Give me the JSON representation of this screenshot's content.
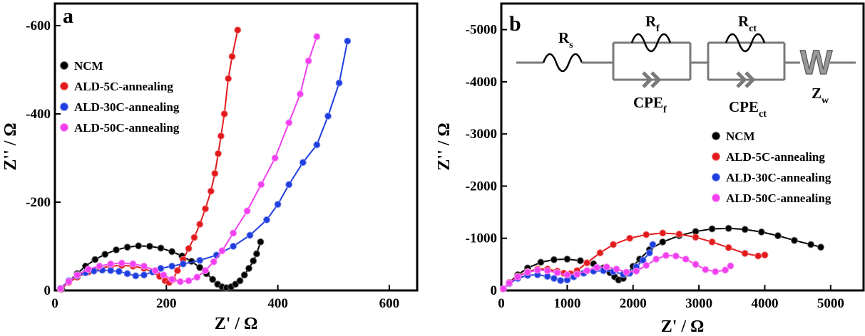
{
  "chart_data": [
    {
      "type": "scatter",
      "panel_label": "a",
      "xlabel": "Z' / Ω",
      "ylabel": "Z'' / Ω",
      "xlim": [
        0,
        650
      ],
      "ylim": [
        0,
        -650
      ],
      "xticks": [
        0,
        200,
        400,
        600
      ],
      "yticks": [
        0,
        -200,
        -400,
        -600
      ],
      "xtick_labels": [
        "0",
        "200",
        "400",
        "600"
      ],
      "ytick_labels": [
        "0",
        "-200",
        "-400",
        "-600"
      ],
      "legend_position": "left-middle",
      "series": [
        {
          "name": "NCM",
          "color": "#000000",
          "x": [
            12,
            25,
            40,
            55,
            72,
            90,
            110,
            130,
            150,
            170,
            190,
            210,
            228,
            245,
            260,
            272,
            283,
            292,
            300,
            308,
            316,
            324,
            332,
            340,
            348,
            356,
            362,
            369
          ],
          "y": [
            -3,
            -20,
            -38,
            -55,
            -70,
            -82,
            -92,
            -98,
            -101,
            -100,
            -96,
            -88,
            -78,
            -66,
            -52,
            -38,
            -25,
            -14,
            -8,
            -6,
            -8,
            -14,
            -22,
            -35,
            -50,
            -67,
            -83,
            -110
          ]
        },
        {
          "name": "ALD-5C-annealing",
          "color": "#e3191c",
          "x": [
            10,
            25,
            40,
            60,
            80,
            100,
            120,
            140,
            160,
            175,
            188,
            198,
            205,
            212,
            220,
            230,
            240,
            250,
            260,
            270,
            280,
            287,
            293,
            298,
            304,
            311,
            318,
            328
          ],
          "y": [
            -3,
            -18,
            -30,
            -42,
            -50,
            -55,
            -57,
            -55,
            -50,
            -42,
            -32,
            -22,
            -18,
            -25,
            -45,
            -70,
            -95,
            -120,
            -150,
            -185,
            -225,
            -265,
            -310,
            -350,
            -400,
            -480,
            -530,
            -590
          ]
        },
        {
          "name": "ALD-30C-annealing",
          "color": "#1f3ee0",
          "x": [
            10,
            25,
            40,
            55,
            70,
            85,
            100,
            115,
            130,
            145,
            160,
            175,
            190,
            210,
            230,
            260,
            290,
            320,
            350,
            380,
            400,
            420,
            445,
            470,
            490,
            510,
            525
          ],
          "y": [
            -5,
            -22,
            -33,
            -40,
            -44,
            -46,
            -45,
            -43,
            -38,
            -33,
            -35,
            -42,
            -50,
            -55,
            -60,
            -68,
            -80,
            -100,
            -125,
            -160,
            -195,
            -240,
            -290,
            -330,
            -395,
            -470,
            -565
          ]
        },
        {
          "name": "ALD-50C-annealing",
          "color": "#f23ff0",
          "x": [
            10,
            25,
            40,
            60,
            80,
            100,
            120,
            140,
            160,
            180,
            195,
            210,
            225,
            240,
            255,
            270,
            285,
            300,
            320,
            345,
            370,
            395,
            420,
            440,
            455,
            470
          ],
          "y": [
            -4,
            -20,
            -35,
            -48,
            -55,
            -60,
            -62,
            -60,
            -55,
            -45,
            -35,
            -25,
            -20,
            -22,
            -30,
            -45,
            -65,
            -90,
            -130,
            -180,
            -240,
            -300,
            -380,
            -445,
            -520,
            -575
          ]
        }
      ]
    },
    {
      "type": "scatter",
      "panel_label": "b",
      "xlabel": "Z' / Ω",
      "ylabel": "Z'' / Ω",
      "xlim": [
        0,
        5500
      ],
      "ylim": [
        0,
        -5500
      ],
      "xticks": [
        0,
        1000,
        2000,
        3000,
        4000,
        5000
      ],
      "yticks": [
        0,
        -1000,
        -2000,
        -3000,
        -4000,
        -5000
      ],
      "xtick_labels": [
        "0",
        "1000",
        "2000",
        "3000",
        "4000",
        "5000"
      ],
      "ytick_labels": [
        "0",
        "-1000",
        "-2000",
        "-3000",
        "-4000",
        "-5000"
      ],
      "legend_position": "center-right",
      "circuit": {
        "labels": [
          "R",
          "s",
          "R",
          "f",
          "R",
          "ct",
          "CPE",
          "f",
          "CPE",
          "ct",
          "Z",
          "w",
          "W"
        ]
      },
      "series": [
        {
          "name": "NCM",
          "color": "#000000",
          "x": [
            30,
            120,
            250,
            400,
            600,
            800,
            1000,
            1200,
            1400,
            1550,
            1650,
            1720,
            1780,
            1850,
            1920,
            2000,
            2100,
            2250,
            2450,
            2700,
            2950,
            3200,
            3450,
            3700,
            3950,
            4200,
            4450,
            4700,
            4850
          ],
          "y": [
            -30,
            -150,
            -300,
            -430,
            -540,
            -590,
            -600,
            -570,
            -510,
            -430,
            -340,
            -260,
            -200,
            -230,
            -330,
            -460,
            -600,
            -780,
            -930,
            -1050,
            -1130,
            -1180,
            -1190,
            -1170,
            -1120,
            -1050,
            -960,
            -880,
            -830
          ]
        },
        {
          "name": "ALD-5C-annealing",
          "color": "#e3191c",
          "x": [
            30,
            120,
            250,
            400,
            550,
            700,
            850,
            950,
            1050,
            1150,
            1300,
            1500,
            1700,
            1950,
            2200,
            2450,
            2700,
            2950,
            3200,
            3450,
            3700,
            3900,
            4000
          ],
          "y": [
            -30,
            -150,
            -270,
            -360,
            -410,
            -410,
            -370,
            -330,
            -320,
            -380,
            -530,
            -720,
            -880,
            -1000,
            -1070,
            -1100,
            -1080,
            -1020,
            -930,
            -820,
            -710,
            -660,
            -680
          ]
        },
        {
          "name": "ALD-30C-annealing",
          "color": "#1f3ee0",
          "x": [
            30,
            120,
            250,
            400,
            550,
            700,
            800,
            900,
            1000,
            1100,
            1250,
            1400,
            1550,
            1700,
            1850,
            1950,
            2050,
            2150,
            2250,
            2300
          ],
          "y": [
            -30,
            -130,
            -230,
            -290,
            -300,
            -270,
            -230,
            -190,
            -200,
            -260,
            -330,
            -370,
            -380,
            -360,
            -310,
            -330,
            -450,
            -580,
            -720,
            -880
          ]
        },
        {
          "name": "ALD-50C-annealing",
          "color": "#f23ff0",
          "x": [
            30,
            120,
            250,
            400,
            550,
            700,
            850,
            1000,
            1150,
            1300,
            1450,
            1600,
            1750,
            1900,
            2050,
            2200,
            2350,
            2500,
            2650,
            2800,
            2950,
            3100,
            3250,
            3400,
            3480
          ],
          "y": [
            -30,
            -140,
            -260,
            -350,
            -390,
            -380,
            -340,
            -300,
            -310,
            -380,
            -440,
            -450,
            -410,
            -350,
            -370,
            -480,
            -600,
            -670,
            -660,
            -600,
            -500,
            -400,
            -360,
            -390,
            -470
          ]
        }
      ]
    }
  ]
}
